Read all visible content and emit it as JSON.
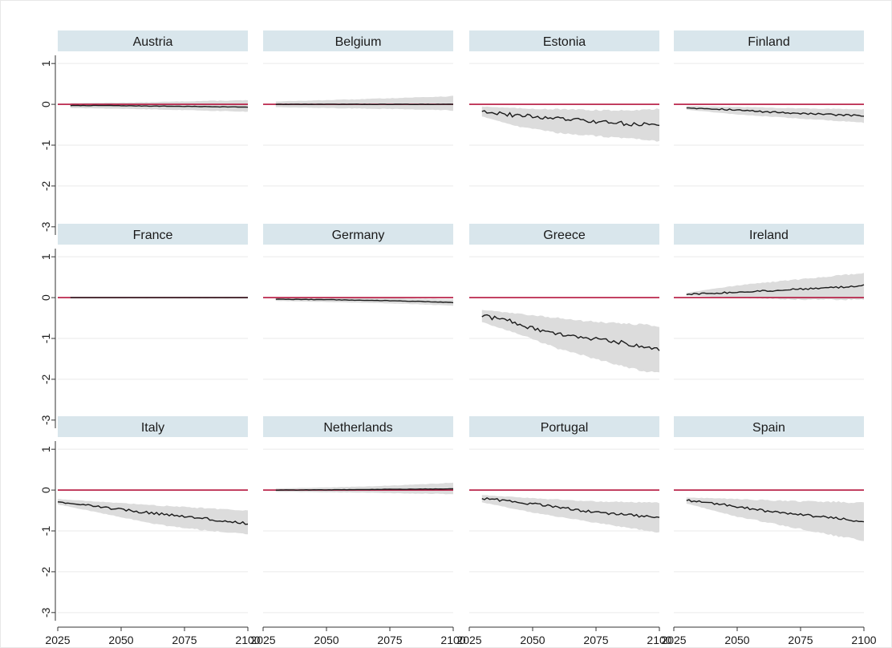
{
  "chart_data": {
    "type": "line",
    "layout": "small-multiples 3x4 grid",
    "title": "",
    "xlabel": "",
    "ylabel": "",
    "xlim": [
      2025,
      2100
    ],
    "ylim": [
      -3.2,
      1.2
    ],
    "x_ticks": [
      "2025",
      "2050",
      "2075",
      "2100"
    ],
    "y_ticks": [
      "1",
      "0",
      "-1",
      "-2",
      "-3"
    ],
    "reference_line": {
      "y": 0,
      "color": "#b5163f"
    },
    "colors": {
      "strip_background": "#d9e6ec",
      "band": "#dcdcdc",
      "line": "#1a1a1a",
      "reference": "#b5163f",
      "gridline": "#eaeaea",
      "page_border": "#e8e8e8"
    },
    "panels": [
      {
        "name": "Austria",
        "points": [
          [
            2030,
            -0.03
          ],
          [
            2045,
            -0.03
          ],
          [
            2060,
            -0.04
          ],
          [
            2075,
            -0.05
          ],
          [
            2090,
            -0.06
          ],
          [
            2100,
            -0.07
          ]
        ],
        "band": [
          [
            2030,
            -0.09,
            0.03
          ],
          [
            2060,
            -0.12,
            0.05
          ],
          [
            2080,
            -0.15,
            0.08
          ],
          [
            2100,
            -0.18,
            0.1
          ]
        ],
        "noise": 0.005
      },
      {
        "name": "Belgium",
        "points": [
          [
            2030,
            0.0
          ],
          [
            2060,
            0.0
          ],
          [
            2080,
            0.0
          ],
          [
            2100,
            0.0
          ]
        ],
        "band": [
          [
            2030,
            -0.07,
            0.07
          ],
          [
            2060,
            -0.1,
            0.12
          ],
          [
            2080,
            -0.12,
            0.16
          ],
          [
            2100,
            -0.15,
            0.2
          ]
        ],
        "noise": 0.005
      },
      {
        "name": "Estonia",
        "points": [
          [
            2030,
            -0.15
          ],
          [
            2040,
            -0.25
          ],
          [
            2050,
            -0.3
          ],
          [
            2060,
            -0.35
          ],
          [
            2070,
            -0.4
          ],
          [
            2080,
            -0.45
          ],
          [
            2090,
            -0.48
          ],
          [
            2100,
            -0.5
          ]
        ],
        "band": [
          [
            2030,
            -0.3,
            -0.05
          ],
          [
            2045,
            -0.55,
            -0.1
          ],
          [
            2060,
            -0.7,
            -0.12
          ],
          [
            2080,
            -0.8,
            -0.15
          ],
          [
            2100,
            -0.9,
            -0.12
          ]
        ],
        "noise": 0.05
      },
      {
        "name": "Finland",
        "points": [
          [
            2030,
            -0.08
          ],
          [
            2045,
            -0.12
          ],
          [
            2060,
            -0.18
          ],
          [
            2075,
            -0.22
          ],
          [
            2090,
            -0.26
          ],
          [
            2100,
            -0.28
          ]
        ],
        "band": [
          [
            2030,
            -0.13,
            -0.04
          ],
          [
            2050,
            -0.25,
            -0.06
          ],
          [
            2075,
            -0.35,
            -0.1
          ],
          [
            2100,
            -0.45,
            -0.12
          ]
        ],
        "noise": 0.02
      },
      {
        "name": "France",
        "points": [
          [
            2030,
            0.0
          ],
          [
            2060,
            0.0
          ],
          [
            2100,
            0.0
          ]
        ],
        "band": [
          [
            2030,
            -0.02,
            0.02
          ],
          [
            2100,
            -0.02,
            0.02
          ]
        ],
        "noise": 0.0
      },
      {
        "name": "Germany",
        "points": [
          [
            2030,
            -0.04
          ],
          [
            2050,
            -0.05
          ],
          [
            2070,
            -0.07
          ],
          [
            2085,
            -0.09
          ],
          [
            2100,
            -0.12
          ]
        ],
        "band": [
          [
            2030,
            -0.08,
            0.0
          ],
          [
            2060,
            -0.12,
            -0.01
          ],
          [
            2080,
            -0.15,
            -0.02
          ],
          [
            2100,
            -0.2,
            -0.04
          ]
        ],
        "noise": 0.005
      },
      {
        "name": "Greece",
        "points": [
          [
            2030,
            -0.45
          ],
          [
            2040,
            -0.55
          ],
          [
            2050,
            -0.75
          ],
          [
            2060,
            -0.9
          ],
          [
            2070,
            -1.0
          ],
          [
            2080,
            -1.05
          ],
          [
            2090,
            -1.15
          ],
          [
            2100,
            -1.25
          ]
        ],
        "band": [
          [
            2030,
            -0.6,
            -0.3
          ],
          [
            2045,
            -0.9,
            -0.4
          ],
          [
            2060,
            -1.25,
            -0.5
          ],
          [
            2075,
            -1.5,
            -0.6
          ],
          [
            2090,
            -1.75,
            -0.65
          ],
          [
            2100,
            -1.85,
            -0.7
          ]
        ],
        "noise": 0.05
      },
      {
        "name": "Ireland",
        "points": [
          [
            2030,
            0.08
          ],
          [
            2045,
            0.12
          ],
          [
            2060,
            0.16
          ],
          [
            2075,
            0.21
          ],
          [
            2090,
            0.25
          ],
          [
            2100,
            0.3
          ]
        ],
        "band": [
          [
            2030,
            0.05,
            0.12
          ],
          [
            2050,
            0.0,
            0.3
          ],
          [
            2075,
            -0.05,
            0.45
          ],
          [
            2100,
            -0.05,
            0.6
          ]
        ],
        "noise": 0.02
      },
      {
        "name": "Italy",
        "points": [
          [
            2025,
            -0.28
          ],
          [
            2035,
            -0.35
          ],
          [
            2050,
            -0.48
          ],
          [
            2065,
            -0.58
          ],
          [
            2080,
            -0.68
          ],
          [
            2090,
            -0.75
          ],
          [
            2100,
            -0.82
          ]
        ],
        "band": [
          [
            2025,
            -0.35,
            -0.22
          ],
          [
            2045,
            -0.6,
            -0.3
          ],
          [
            2065,
            -0.85,
            -0.38
          ],
          [
            2085,
            -1.0,
            -0.45
          ],
          [
            2100,
            -1.08,
            -0.5
          ]
        ],
        "noise": 0.03
      },
      {
        "name": "Netherlands",
        "points": [
          [
            2030,
            0.0
          ],
          [
            2060,
            0.01
          ],
          [
            2080,
            0.02
          ],
          [
            2100,
            0.03
          ]
        ],
        "band": [
          [
            2030,
            -0.04,
            0.04
          ],
          [
            2060,
            -0.06,
            0.08
          ],
          [
            2080,
            -0.08,
            0.12
          ],
          [
            2100,
            -0.1,
            0.18
          ]
        ],
        "noise": 0.004
      },
      {
        "name": "Portugal",
        "points": [
          [
            2030,
            -0.2
          ],
          [
            2045,
            -0.3
          ],
          [
            2060,
            -0.42
          ],
          [
            2075,
            -0.55
          ],
          [
            2090,
            -0.62
          ],
          [
            2100,
            -0.68
          ]
        ],
        "band": [
          [
            2030,
            -0.3,
            -0.12
          ],
          [
            2050,
            -0.55,
            -0.2
          ],
          [
            2075,
            -0.8,
            -0.28
          ],
          [
            2100,
            -1.05,
            -0.3
          ]
        ],
        "noise": 0.03
      },
      {
        "name": "Spain",
        "points": [
          [
            2030,
            -0.25
          ],
          [
            2045,
            -0.35
          ],
          [
            2060,
            -0.5
          ],
          [
            2075,
            -0.6
          ],
          [
            2090,
            -0.7
          ],
          [
            2100,
            -0.78
          ]
        ],
        "band": [
          [
            2030,
            -0.33,
            -0.18
          ],
          [
            2050,
            -0.65,
            -0.22
          ],
          [
            2075,
            -0.95,
            -0.28
          ],
          [
            2100,
            -1.25,
            -0.3
          ]
        ],
        "noise": 0.03
      }
    ]
  }
}
